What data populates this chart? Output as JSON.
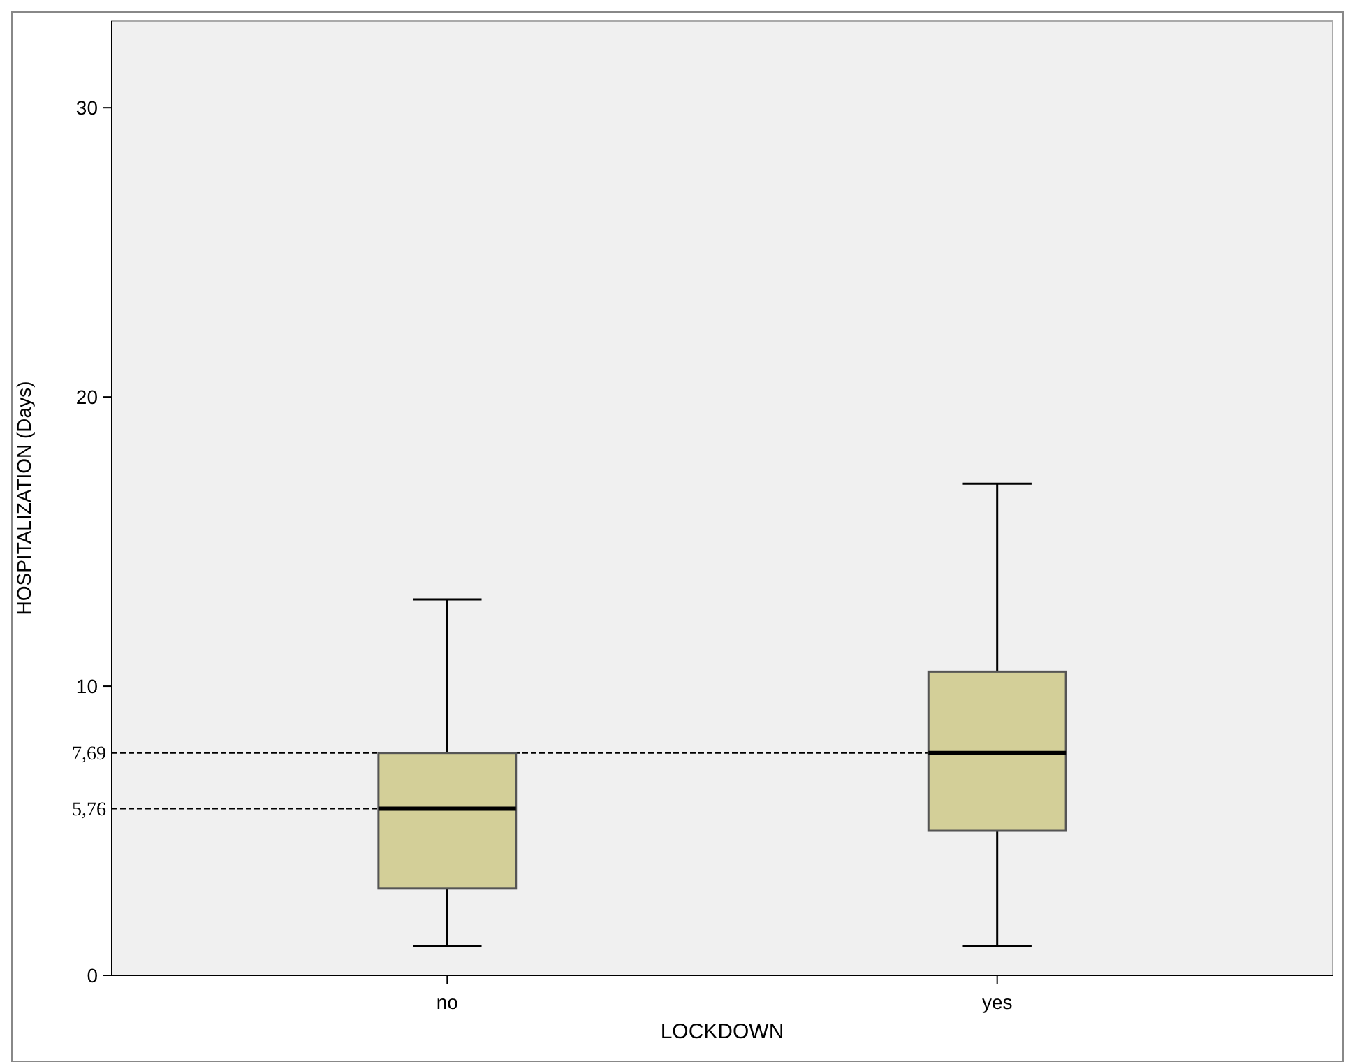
{
  "chart_data": {
    "type": "box",
    "xlabel": "LOCKDOWN",
    "ylabel": "HOSPITALIZATION (Days)",
    "categories": [
      "no",
      "yes"
    ],
    "color": "#d3cf98",
    "boxes": [
      {
        "low": 1,
        "q1": 3,
        "median": 5.76,
        "q3": 7.69,
        "high": 13
      },
      {
        "low": 1,
        "q1": 5,
        "median": 7.69,
        "q3": 10.5,
        "high": 17
      }
    ],
    "ylim": [
      0,
      33
    ],
    "yticks": [
      0,
      10,
      20,
      30
    ],
    "ref_lines": [
      {
        "axis": "y",
        "value": 7.69,
        "label": "7,69",
        "line_style": "dashed"
      },
      {
        "axis": "y",
        "value": 5.76,
        "label": "5,76",
        "line_style": "dashed"
      }
    ]
  }
}
